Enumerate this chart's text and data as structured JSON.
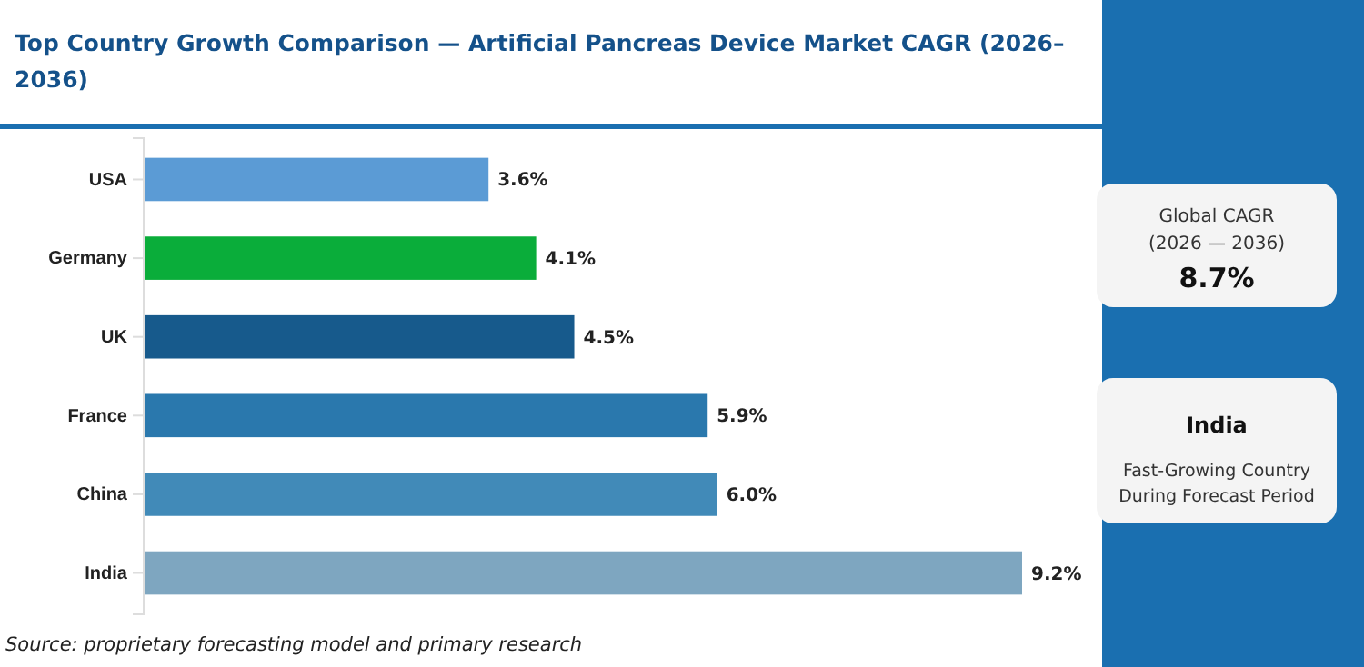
{
  "chart_data": {
    "type": "bar",
    "orientation": "horizontal",
    "title": "Top Country Growth Comparison — Artificial Pancreas Device Market CAGR (2026–2036)",
    "categories": [
      "USA",
      "Germany",
      "UK",
      "France",
      "China",
      "India"
    ],
    "values": [
      3.6,
      4.1,
      4.5,
      5.9,
      6.0,
      9.2
    ],
    "colors": [
      "#5b9bd5",
      "#0aad3a",
      "#175a8c",
      "#2a78ad",
      "#418ab8",
      "#7ea6c0"
    ],
    "value_labels": [
      "3.6%",
      "4.1%",
      "4.5%",
      "5.9%",
      "6.0%",
      "9.2%"
    ],
    "tick_labels": "y",
    "annotations": [
      "Global CAGR",
      "(2026 — 2036)",
      "8.7%",
      "India",
      "Fast-Growing Country",
      "During Forecast Period",
      "Source: proprietary forecasting model and primary research"
    ]
  }
}
